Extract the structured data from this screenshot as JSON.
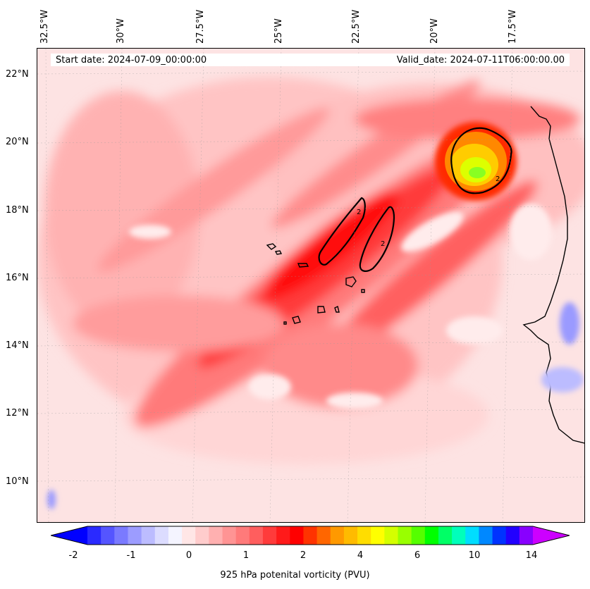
{
  "map": {
    "lon_labels": [
      "32.5°W",
      "30°W",
      "27.5°W",
      "25°W",
      "22.5°W",
      "20°W",
      "17.5°W"
    ],
    "lat_labels": [
      "22°N",
      "20°N",
      "18°N",
      "16°N",
      "14°N",
      "12°N",
      "10°N"
    ],
    "start_date": "Start date: 2024-07-09_00:00:00",
    "valid_date": "Valid_date: 2024-07-11T06:00:00.00",
    "contour_label": "2"
  },
  "colorbar": {
    "ticks": [
      "-2",
      "-1",
      "0",
      "1",
      "2",
      "4",
      "6",
      "10",
      "14"
    ],
    "title": "925 hPa potenital vorticity (PVU)",
    "colors": [
      "#0000ff",
      "#2a2aff",
      "#5555ff",
      "#7a7aff",
      "#9c9cff",
      "#bcbcff",
      "#dcdcff",
      "#f4f4ff",
      "#ffe6e6",
      "#ffcccc",
      "#ffb0b0",
      "#ff9494",
      "#ff7a7a",
      "#ff5e5e",
      "#ff3b3b",
      "#ff1a1a",
      "#ff0000",
      "#ff3300",
      "#ff6600",
      "#ff9900",
      "#ffbb00",
      "#ffdd00",
      "#ffff00",
      "#d4ff00",
      "#99ff00",
      "#55ff00",
      "#00ff00",
      "#00ff66",
      "#00ffbb",
      "#00ddff",
      "#0088ff",
      "#0033ff",
      "#2200ff",
      "#8800ff",
      "#cc00ff"
    ]
  }
}
